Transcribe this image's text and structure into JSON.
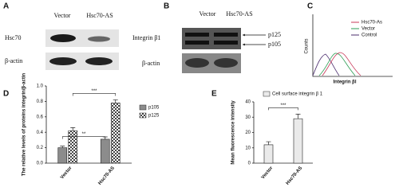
{
  "panel_a": {
    "label": "A",
    "columns": [
      "Vector",
      "Hsc70-AS"
    ],
    "rows": [
      "Hsc70",
      "β-actin"
    ]
  },
  "panel_b": {
    "label": "B",
    "columns": [
      "Vector",
      "Hsc70-AS"
    ],
    "rows": [
      "Integrin β1",
      "β-actin"
    ],
    "bands": [
      "p125",
      "p105"
    ]
  },
  "panel_c": {
    "label": "C",
    "legend": [
      "Hsc70-As",
      "Vector",
      "Control"
    ],
    "y_label": "Counts",
    "x_label": "Integrin βl"
  },
  "chart_data": [
    {
      "type": "bar",
      "panel": "D",
      "y_label": "The relative levels of proteins integrin/β-actin",
      "categories": [
        "Vector",
        "Hsc70-AS"
      ],
      "series": [
        {
          "name": "p105",
          "color": "#8c8c8c",
          "values": [
            0.2,
            0.31
          ],
          "errors": [
            0.02,
            0.03
          ]
        },
        {
          "name": "p125",
          "color": "#444444",
          "pattern": "checker",
          "values": [
            0.42,
            0.78
          ],
          "errors": [
            0.04,
            0.04
          ]
        }
      ],
      "ylim": [
        0,
        1.0
      ],
      "yticks": [
        {
          "value": 0,
          "label": "0.0"
        },
        {
          "value": 0.2,
          "label": "0.2"
        },
        {
          "value": 0.4,
          "label": "0.4"
        },
        {
          "value": 0.6,
          "label": "0.6"
        },
        {
          "value": 0.8,
          "label": "0.8"
        },
        {
          "value": 1.0,
          "label": "1.0"
        }
      ],
      "significance": [
        "**",
        "***"
      ],
      "legend": "right"
    },
    {
      "type": "bar",
      "panel": "E",
      "y_label": "Mean fluorescence intensity",
      "categories": [
        "Vector",
        "Hsc70-AS"
      ],
      "series": [
        {
          "name": "Cell surface integrin β 1",
          "color": "#888888",
          "pattern": "lines",
          "values": [
            12,
            29
          ],
          "errors": [
            2,
            3
          ]
        }
      ],
      "ylim": [
        0,
        40
      ],
      "yticks": [
        0,
        10,
        20,
        30,
        40
      ],
      "significance": [
        "***"
      ],
      "legend": "top"
    }
  ]
}
